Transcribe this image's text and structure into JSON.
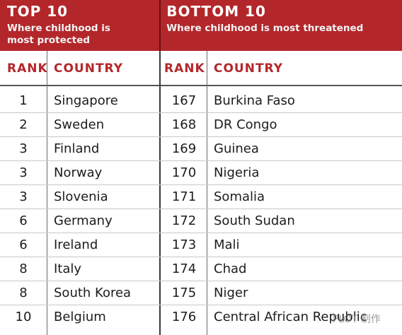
{
  "top": {
    "title": "TOP 10",
    "subtitle": "Where childhood is\nmost protected",
    "rank_header": "RANK",
    "country_header": "COUNTRY",
    "rows": [
      {
        "rank": "1",
        "country": "Singapore"
      },
      {
        "rank": "2",
        "country": "Sweden"
      },
      {
        "rank": "3",
        "country": "Finland"
      },
      {
        "rank": "3",
        "country": "Norway"
      },
      {
        "rank": "3",
        "country": "Slovenia"
      },
      {
        "rank": "6",
        "country": "Germany"
      },
      {
        "rank": "6",
        "country": "Ireland"
      },
      {
        "rank": "8",
        "country": "Italy"
      },
      {
        "rank": "8",
        "country": "South Korea"
      },
      {
        "rank": "10",
        "country": "Belgium"
      }
    ]
  },
  "bottom": {
    "title": "BOTTOM 10",
    "subtitle": "Where childhood is most threatened",
    "rank_header": "RANK",
    "country_header": "COUNTRY",
    "rows": [
      {
        "rank": "167",
        "country": "Burkina Faso"
      },
      {
        "rank": "168",
        "country": "DR Congo"
      },
      {
        "rank": "169",
        "country": "Guinea"
      },
      {
        "rank": "170",
        "country": "Nigeria"
      },
      {
        "rank": "171",
        "country": "Somalia"
      },
      {
        "rank": "172",
        "country": "South Sudan"
      },
      {
        "rank": "173",
        "country": "Mali"
      },
      {
        "rank": "174",
        "country": "Chad"
      },
      {
        "rank": "175",
        "country": "Niger"
      },
      {
        "rank": "176",
        "country": "Central African Republic"
      }
    ]
  },
  "watermark": "PLOT 制作"
}
